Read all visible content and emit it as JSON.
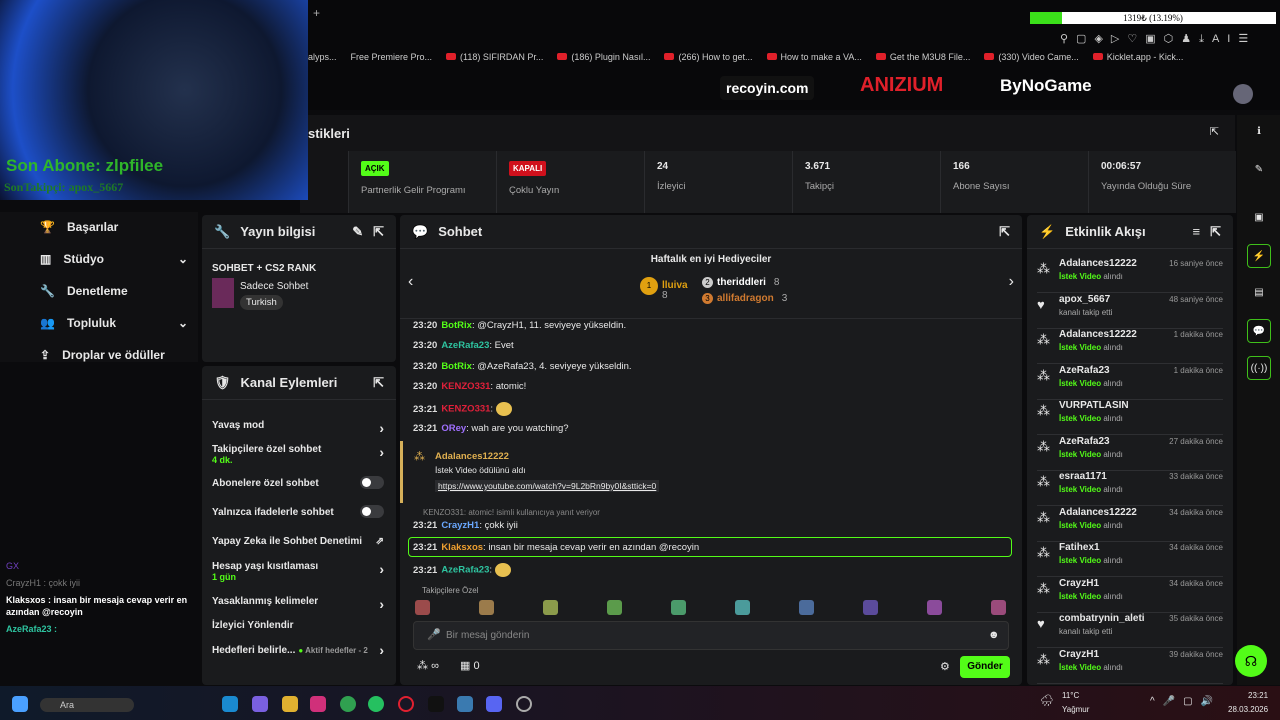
{
  "browser": {
    "progress_text": "1319₺ (13.19%)",
    "progress_pct": 13.19,
    "bookmarks": [
      "alyps...",
      "Free Premiere Pro...",
      "(118) SIFIRDAN Pr...",
      "(186) Plugin Nasıl...",
      "(266) How to get...",
      "How to make a VA...",
      "Get the M3U8 File...",
      "(330) Video Came...",
      "Kicklet.app - Kick..."
    ]
  },
  "overlay": {
    "last_sub": "Son Abone: zlpfilee",
    "last_follow": "SonTakipçi: apox_5667",
    "watermarks": [
      "recoyin.com",
      "ANIZIUM",
      "ByNoGame"
    ]
  },
  "stats": {
    "title": "stikleri",
    "items": [
      {
        "badge": "AÇIK",
        "label": "Partnerlik Gelir Programı",
        "color": "#53fc18"
      },
      {
        "badge": "KAPALI",
        "label": "Çoklu Yayın",
        "color": "#d0101c"
      },
      {
        "value": "24",
        "label": "İzleyici"
      },
      {
        "value": "3.671",
        "label": "Takipçi"
      },
      {
        "value": "166",
        "label": "Abone Sayısı"
      },
      {
        "value": "00:06:57",
        "label": "Yayında Olduğu Süre"
      }
    ]
  },
  "nav": [
    "Başarılar",
    "Stüdyo",
    "Denetleme",
    "Topluluk",
    "Droplar ve ödüller"
  ],
  "stream_info": {
    "title": "Yayın bilgisi",
    "stream_title": "SOHBET + CS2 RANK",
    "category": "Sadece Sohbet",
    "tag": "Turkish"
  },
  "channel_actions": {
    "title": "Kanal Eylemleri",
    "items": [
      {
        "label": "Yavaş mod"
      },
      {
        "label": "Takipçilere özel sohbet",
        "sub": "4 dk."
      },
      {
        "label": "Abonelere özel sohbet"
      },
      {
        "label": "Yalnızca ifadelerle sohbet"
      },
      {
        "label": "Yapay Zeka ile Sohbet Denetimi"
      },
      {
        "label": "Hesap yaşı kısıtlaması",
        "sub": "1 gün"
      },
      {
        "label": "Yasaklanmış kelimeler"
      },
      {
        "label": "İzleyici Yönlendir"
      },
      {
        "label": "Hedefleri belirle...",
        "sub": "Aktif hedefler - 2"
      }
    ]
  },
  "chat": {
    "title": "Sohbet",
    "gifters_title": "Haftalık en iyi Hediyeciler",
    "gifters": [
      {
        "rank": "1",
        "name": "lluiva",
        "count": "8"
      },
      {
        "rank": "2",
        "name": "theriddleri",
        "count": "8"
      },
      {
        "rank": "3",
        "name": "allifadragon",
        "count": "3"
      }
    ],
    "messages": [
      {
        "time": "23:20",
        "user": "BotRix",
        "color": "#53fc18",
        "text": "@CrayzH1, 11. seviyeye yükseldin."
      },
      {
        "time": "23:20",
        "user": "AzeRafa23",
        "color": "#2ec4a0",
        "text": "Evet"
      },
      {
        "time": "23:20",
        "user": "BotRix",
        "color": "#53fc18",
        "text": "@AzeRafa23, 4. seviyeye yükseldin."
      },
      {
        "time": "23:20",
        "user": "KENZO331",
        "color": "#e0203a",
        "text": "atomic!"
      },
      {
        "time": "23:21",
        "user": "KENZO331",
        "color": "#e0203a",
        "text": ""
      },
      {
        "time": "23:21",
        "user": "ORey",
        "color": "#a070ff",
        "text": "wah are you watching?"
      }
    ],
    "reward": {
      "user": "Adalances12222",
      "text": "İstek Video ödülünü aldı",
      "link": "https://www.youtube.com/watch?v=9L2bRn9by0I&sttick=0"
    },
    "reply_note": "KENZO331: atomic! isimli kullanıcıya yanıt veriyor",
    "messages2": [
      {
        "time": "23:21",
        "user": "CrayzH1",
        "color": "#6aa8ff",
        "text": "çokk iyii"
      },
      {
        "time": "23:21",
        "user": "Klaksxos",
        "color": "#f0a030",
        "text": "insan bir mesaja cevap verir en azından @recoyin"
      },
      {
        "time": "23:21",
        "user": "AzeRafa23",
        "color": "#2ec4a0",
        "text": ""
      }
    ],
    "emote_label": "Takipçilere Özel",
    "input_placeholder": "Bir mesaj gönderin",
    "points": "∞",
    "store_count": "0",
    "send": "Gönder"
  },
  "events": {
    "title": "Etkinlik Akışı",
    "items": [
      {
        "user": "Adalances12222",
        "type": "reward",
        "time": "16 saniye önce"
      },
      {
        "user": "apox_5667",
        "type": "follow",
        "time": "48 saniye önce"
      },
      {
        "user": "Adalances12222",
        "type": "reward",
        "time": "1 dakika önce"
      },
      {
        "user": "AzeRafa23",
        "type": "reward",
        "time": "1 dakika önce"
      },
      {
        "user": "VURPATLASIN",
        "type": "reward",
        "time": ""
      },
      {
        "user": "AzeRafa23",
        "type": "reward",
        "time": "27 dakika önce"
      },
      {
        "user": "esraa1171",
        "type": "reward",
        "time": "33 dakika önce"
      },
      {
        "user": "Adalances12222",
        "type": "reward",
        "time": "34 dakika önce"
      },
      {
        "user": "Fatihex1",
        "type": "reward",
        "time": "34 dakika önce"
      },
      {
        "user": "CrayzH1",
        "type": "reward",
        "time": "34 dakika önce"
      },
      {
        "user": "combatrynin_aleti",
        "type": "follow",
        "time": "35 dakika önce"
      },
      {
        "user": "CrayzH1",
        "type": "reward",
        "time": "39 dakika önce"
      }
    ],
    "reward_bold": "İstek Video",
    "reward_rest": " alındı",
    "follow_text": "kanalı takip etti"
  },
  "overlay_chat": [
    "GX",
    "CrayzH1 : çokk iyii",
    "Klaksxos : insan bir mesaja cevap verir en azından @recoyin",
    "AzeRafa23 :"
  ],
  "taskbar": {
    "search": "Ara",
    "weather_temp": "11°C",
    "weather": "Yağmur",
    "time": "23:21",
    "date": "28.03.2026"
  }
}
